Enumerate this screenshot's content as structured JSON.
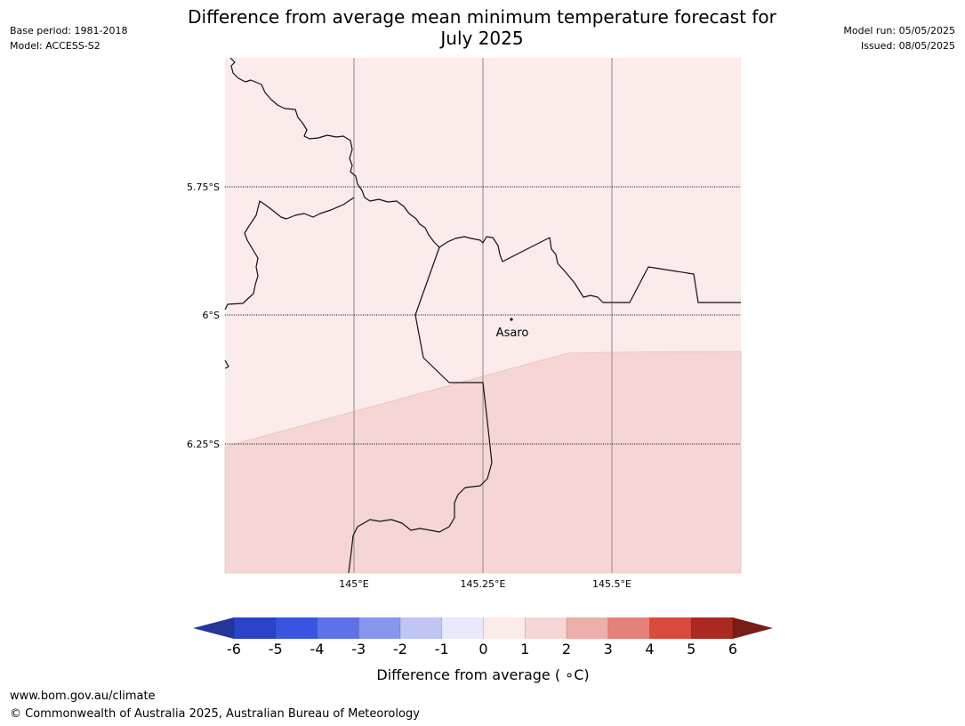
{
  "header": {
    "title_line1": "Difference from average mean minimum temperature forecast for",
    "title_line2": "July 2025",
    "base_period": "Base period: 1981-2018",
    "model": "Model: ACCESS-S2",
    "model_run": "Model run: 05/05/2025",
    "issued": "Issued: 08/05/2025"
  },
  "map": {
    "lat_labels": [
      "5.75°S",
      "6°S",
      "6.25°S"
    ],
    "lon_labels": [
      "145°E",
      "145.25°E",
      "145.5°E"
    ],
    "place": "Asaro",
    "region_colors": {
      "upper": "#fbebea",
      "lower": "#f5d6d4"
    },
    "region_values": {
      "upper": "0 to 1 °C",
      "lower": "1 to 2 °C"
    }
  },
  "colorbar": {
    "label": "Difference from average ( ∘C)",
    "ticks": [
      "-6",
      "-5",
      "-4",
      "-3",
      "-2",
      "-1",
      "0",
      "1",
      "2",
      "3",
      "4",
      "5",
      "6"
    ],
    "colors": [
      "#263598",
      "#2a43c8",
      "#3a54e2",
      "#5c72e6",
      "#8796ef",
      "#bfc6f6",
      "#e8eafc",
      "#fbebea",
      "#f5d6d4",
      "#eeaea9",
      "#e5807a",
      "#d94a3e",
      "#a92a21",
      "#7a1d17"
    ]
  },
  "footer": {
    "url": "www.bom.gov.au/climate",
    "copyright": "© Commonwealth of Australia 2025, Australian Bureau of Meteorology"
  }
}
